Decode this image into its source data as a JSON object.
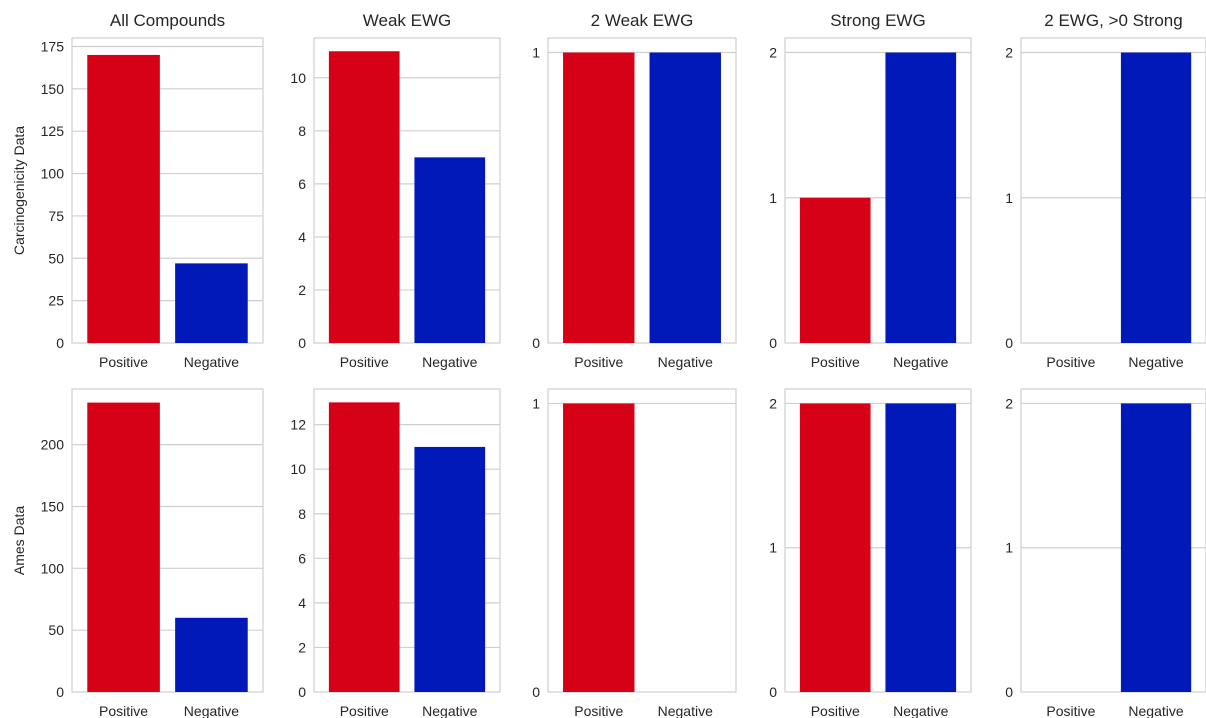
{
  "colors": {
    "positive": "#d60017",
    "negative": "#0019b8"
  },
  "row_labels": [
    "Carcinogenicity Data",
    "Ames Data"
  ],
  "chart_data": [
    {
      "type": "bar",
      "title": "All Compounds",
      "categories": [
        "Positive",
        "Negative"
      ],
      "values": [
        170,
        47
      ],
      "ylim": [
        0,
        180
      ],
      "yticks": [
        0,
        25,
        50,
        75,
        100,
        125,
        150,
        175
      ],
      "ylabel": "Carcinogenicity Data",
      "grid": true
    },
    {
      "type": "bar",
      "title": "Weak EWG",
      "categories": [
        "Positive",
        "Negative"
      ],
      "values": [
        11,
        7
      ],
      "ylim": [
        0,
        11.5
      ],
      "yticks": [
        0,
        2,
        4,
        6,
        8,
        10
      ],
      "grid": true
    },
    {
      "type": "bar",
      "title": "2 Weak EWG",
      "categories": [
        "Positive",
        "Negative"
      ],
      "values": [
        1,
        1
      ],
      "ylim": [
        0,
        1.05
      ],
      "yticks": [
        0,
        1
      ],
      "grid": true
    },
    {
      "type": "bar",
      "title": "Strong EWG",
      "categories": [
        "Positive",
        "Negative"
      ],
      "values": [
        1,
        2
      ],
      "ylim": [
        0,
        2.1
      ],
      "yticks": [
        0,
        1,
        2
      ],
      "grid": true
    },
    {
      "type": "bar",
      "title": "2 EWG, >0 Strong",
      "categories": [
        "Positive",
        "Negative"
      ],
      "values": [
        0,
        2
      ],
      "ylim": [
        0,
        2.1
      ],
      "yticks": [
        0,
        1,
        2
      ],
      "grid": true
    },
    {
      "type": "bar",
      "title": "",
      "categories": [
        "Positive",
        "Negative"
      ],
      "values": [
        234,
        60
      ],
      "ylim": [
        0,
        245
      ],
      "yticks": [
        0,
        50,
        100,
        150,
        200
      ],
      "ylabel": "Ames Data",
      "grid": true
    },
    {
      "type": "bar",
      "title": "",
      "categories": [
        "Positive",
        "Negative"
      ],
      "values": [
        13,
        11
      ],
      "ylim": [
        0,
        13.6
      ],
      "yticks": [
        0,
        2,
        4,
        6,
        8,
        10,
        12
      ],
      "grid": true
    },
    {
      "type": "bar",
      "title": "",
      "categories": [
        "Positive",
        "Negative"
      ],
      "values": [
        1,
        0
      ],
      "ylim": [
        0,
        1.05
      ],
      "yticks": [
        0,
        1
      ],
      "grid": true
    },
    {
      "type": "bar",
      "title": "",
      "categories": [
        "Positive",
        "Negative"
      ],
      "values": [
        2,
        2
      ],
      "ylim": [
        0,
        2.1
      ],
      "yticks": [
        0,
        1,
        2
      ],
      "grid": true
    },
    {
      "type": "bar",
      "title": "",
      "categories": [
        "Positive",
        "Negative"
      ],
      "values": [
        0,
        2
      ],
      "ylim": [
        0,
        2.1
      ],
      "yticks": [
        0,
        1,
        2
      ],
      "grid": true
    }
  ]
}
